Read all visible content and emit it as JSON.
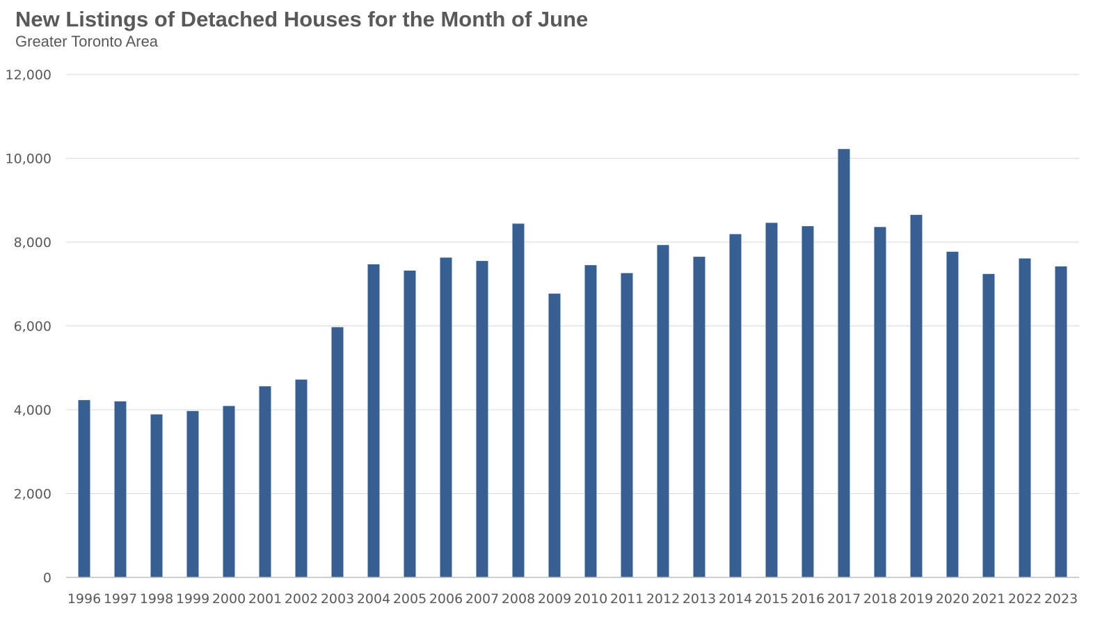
{
  "chart_data": {
    "type": "bar",
    "title": "New Listings of Detached Houses for the Month of June",
    "subtitle": "Greater Toronto Area",
    "xlabel": "",
    "ylabel": "",
    "ylim": [
      0,
      12000
    ],
    "yticks": [
      0,
      2000,
      4000,
      6000,
      8000,
      10000,
      12000
    ],
    "ytick_labels": [
      "0",
      "2,000",
      "4,000",
      "6,000",
      "8,000",
      "10,000",
      "12,000"
    ],
    "grid": true,
    "bar_color": "#375F92",
    "categories": [
      "1996",
      "1997",
      "1998",
      "1999",
      "2000",
      "2001",
      "2002",
      "2003",
      "2004",
      "2005",
      "2006",
      "2007",
      "2008",
      "2009",
      "2010",
      "2011",
      "2012",
      "2013",
      "2014",
      "2015",
      "2016",
      "2017",
      "2018",
      "2019",
      "2020",
      "2021",
      "2022",
      "2023"
    ],
    "values": [
      4230,
      4200,
      3890,
      3970,
      4090,
      4560,
      4720,
      5970,
      7470,
      7320,
      7630,
      7550,
      8440,
      6770,
      7450,
      7260,
      7930,
      7650,
      8190,
      8460,
      8380,
      10220,
      8360,
      8650,
      7770,
      7240,
      7610,
      7420
    ]
  }
}
